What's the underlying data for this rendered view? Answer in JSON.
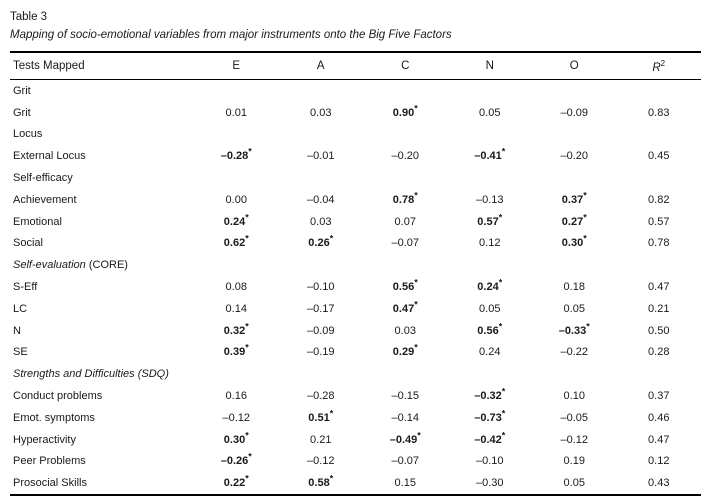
{
  "header": {
    "table_number": "Table 3",
    "caption": "Mapping of socio-emotional variables from major instruments onto the Big Five Factors"
  },
  "table": {
    "columns": [
      {
        "label": "Tests Mapped",
        "italic": false
      },
      {
        "label": "E",
        "italic": false
      },
      {
        "label": "A",
        "italic": false
      },
      {
        "label": "C",
        "italic": false
      },
      {
        "label": "N",
        "italic": false
      },
      {
        "label": "O",
        "italic": false
      },
      {
        "label": "R",
        "sup": "2",
        "italic": true
      }
    ],
    "rows": [
      {
        "type": "section",
        "label": "Grit",
        "italic": false
      },
      {
        "type": "data",
        "label": "Grit",
        "cells": [
          {
            "v": "0.01"
          },
          {
            "v": "0.03"
          },
          {
            "v": "0.90",
            "star": true
          },
          {
            "v": "0.05"
          },
          {
            "v": "–0.09"
          },
          {
            "v": "0.83"
          }
        ]
      },
      {
        "type": "section",
        "label": "Locus",
        "italic": false
      },
      {
        "type": "data",
        "label": "External Locus",
        "cells": [
          {
            "v": "–0.28",
            "star": true
          },
          {
            "v": "–0.01"
          },
          {
            "v": "–0.20"
          },
          {
            "v": "–0.41",
            "star": true
          },
          {
            "v": "–0.20"
          },
          {
            "v": "0.45"
          }
        ]
      },
      {
        "type": "section",
        "label": "Self-efficacy",
        "italic": false
      },
      {
        "type": "data",
        "label": "Achievement",
        "cells": [
          {
            "v": "0.00"
          },
          {
            "v": "–0.04"
          },
          {
            "v": "0.78",
            "star": true
          },
          {
            "v": "–0.13"
          },
          {
            "v": "0.37",
            "star": true
          },
          {
            "v": "0.82"
          }
        ]
      },
      {
        "type": "data",
        "label": "Emotional",
        "cells": [
          {
            "v": "0.24",
            "star": true
          },
          {
            "v": "0.03"
          },
          {
            "v": "0.07"
          },
          {
            "v": "0.57",
            "star": true
          },
          {
            "v": "0.27",
            "star": true
          },
          {
            "v": "0.57"
          }
        ]
      },
      {
        "type": "data",
        "label": "Social",
        "cells": [
          {
            "v": "0.62",
            "star": true
          },
          {
            "v": "0.26",
            "star": true
          },
          {
            "v": "–0.07"
          },
          {
            "v": "0.12"
          },
          {
            "v": "0.30",
            "star": true
          },
          {
            "v": "0.78"
          }
        ]
      },
      {
        "type": "section",
        "label": "Self-evaluation",
        "suffix": " (CORE)",
        "italic": true
      },
      {
        "type": "data",
        "label": "S-Eff",
        "cells": [
          {
            "v": "0.08"
          },
          {
            "v": "–0.10"
          },
          {
            "v": "0.56",
            "star": true
          },
          {
            "v": "0.24",
            "star": true
          },
          {
            "v": "0.18"
          },
          {
            "v": "0.47"
          }
        ]
      },
      {
        "type": "data",
        "label": "LC",
        "cells": [
          {
            "v": "0.14"
          },
          {
            "v": "–0.17"
          },
          {
            "v": "0.47",
            "star": true
          },
          {
            "v": "0.05"
          },
          {
            "v": "0.05"
          },
          {
            "v": "0.21"
          }
        ]
      },
      {
        "type": "data",
        "label": "N",
        "cells": [
          {
            "v": "0.32",
            "star": true
          },
          {
            "v": "–0.09"
          },
          {
            "v": "0.03"
          },
          {
            "v": "0.56",
            "star": true
          },
          {
            "v": "–0.33",
            "star": true
          },
          {
            "v": "0.50"
          }
        ]
      },
      {
        "type": "data",
        "label": "SE",
        "cells": [
          {
            "v": "0.39",
            "star": true
          },
          {
            "v": "–0.19"
          },
          {
            "v": "0.29",
            "star": true
          },
          {
            "v": "0.24"
          },
          {
            "v": "–0.22"
          },
          {
            "v": "0.28"
          }
        ]
      },
      {
        "type": "section",
        "label": "Strengths and Difficulties (SDQ)",
        "italic": true
      },
      {
        "type": "data",
        "label": "Conduct problems",
        "cells": [
          {
            "v": "0.16"
          },
          {
            "v": "–0.28"
          },
          {
            "v": "–0.15"
          },
          {
            "v": "–0.32",
            "star": true
          },
          {
            "v": "0.10"
          },
          {
            "v": "0.37"
          }
        ]
      },
      {
        "type": "data",
        "label": "Emot. symptoms",
        "cells": [
          {
            "v": "–0.12"
          },
          {
            "v": "0.51",
            "star": true
          },
          {
            "v": "–0.14"
          },
          {
            "v": "–0.73",
            "star": true
          },
          {
            "v": "–0.05"
          },
          {
            "v": "0.46"
          }
        ]
      },
      {
        "type": "data",
        "label": "Hyperactivity",
        "cells": [
          {
            "v": "0.30",
            "star": true
          },
          {
            "v": "0.21"
          },
          {
            "v": "–0.49",
            "star": true
          },
          {
            "v": "–0.42",
            "star": true
          },
          {
            "v": "–0.12"
          },
          {
            "v": "0.47"
          }
        ]
      },
      {
        "type": "data",
        "label": "Peer Problems",
        "cells": [
          {
            "v": "–0.26",
            "star": true
          },
          {
            "v": "–0.12"
          },
          {
            "v": "–0.07"
          },
          {
            "v": "–0.10"
          },
          {
            "v": "0.19"
          },
          {
            "v": "0.12"
          }
        ]
      },
      {
        "type": "data",
        "label": "Prosocial Skills",
        "cells": [
          {
            "v": "0.22",
            "star": true
          },
          {
            "v": "0.58",
            "star": true
          },
          {
            "v": "0.15"
          },
          {
            "v": "–0.30"
          },
          {
            "v": "0.05"
          },
          {
            "v": "0.43"
          }
        ]
      }
    ]
  }
}
